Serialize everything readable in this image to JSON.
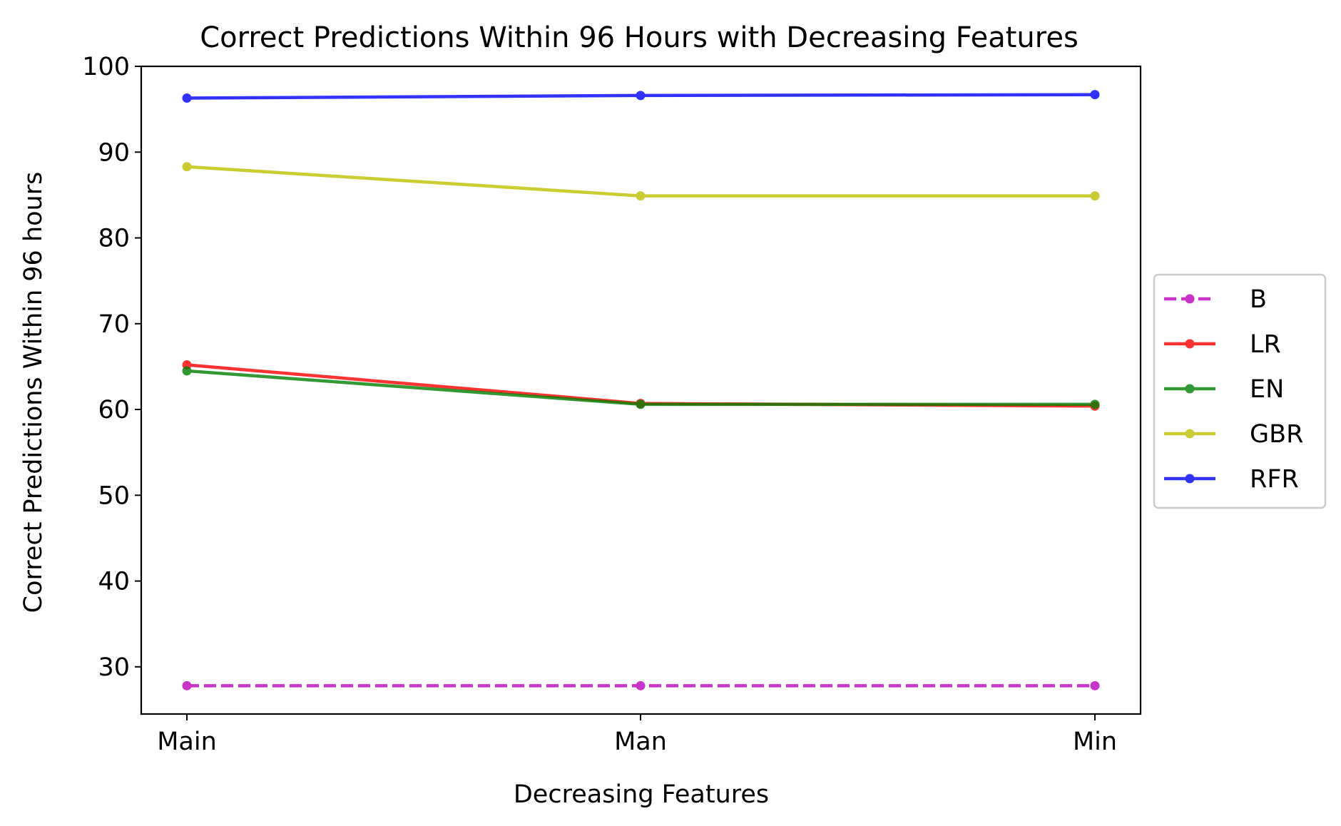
{
  "chart_data": {
    "type": "line",
    "title": "Correct Predictions Within 96 Hours with Decreasing Features",
    "xlabel": "Decreasing Features",
    "ylabel": "Correct Predictions Within 96 hours",
    "categories": [
      "Main",
      "Man",
      "Min"
    ],
    "ylim": [
      24.5,
      100
    ],
    "yticks": [
      30,
      40,
      50,
      60,
      70,
      80,
      90,
      100
    ],
    "grid": false,
    "legend_position": "center-right outside",
    "series": [
      {
        "name": "B",
        "values": [
          27.8,
          27.8,
          27.8
        ],
        "color": "#bf00bf",
        "style": "dashed"
      },
      {
        "name": "LR",
        "values": [
          65.2,
          60.7,
          60.4
        ],
        "color": "#ff0000",
        "style": "solid"
      },
      {
        "name": "EN",
        "values": [
          64.5,
          60.6,
          60.6
        ],
        "color": "#008000",
        "style": "solid"
      },
      {
        "name": "GBR",
        "values": [
          88.3,
          84.9,
          84.9
        ],
        "color": "#bfbf00",
        "style": "solid"
      },
      {
        "name": "RFR",
        "values": [
          96.3,
          96.6,
          96.7
        ],
        "color": "#0000ff",
        "style": "solid"
      }
    ]
  }
}
